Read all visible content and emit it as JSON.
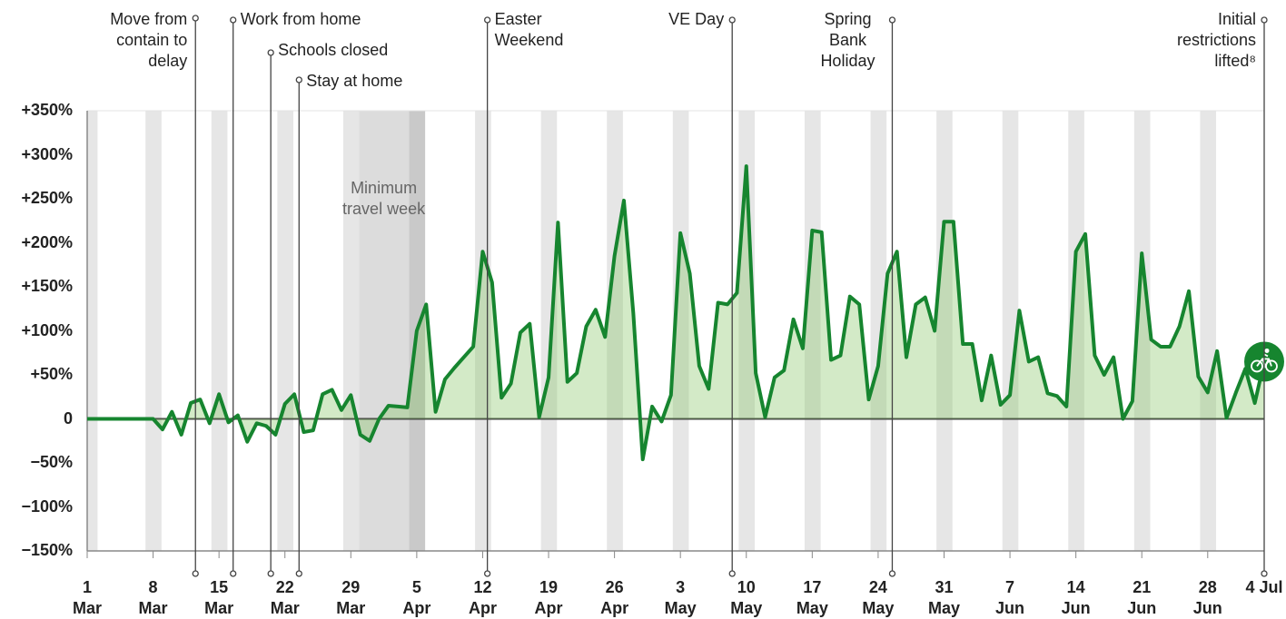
{
  "chart_data": {
    "type": "line",
    "categories": [
      "1 Mar",
      "2 Mar",
      "3 Mar",
      "4 Mar",
      "5 Mar",
      "6 Mar",
      "7 Mar",
      "8 Mar",
      "9 Mar",
      "10 Mar",
      "11 Mar",
      "12 Mar",
      "13 Mar",
      "14 Mar",
      "15 Mar",
      "16 Mar",
      "17 Mar",
      "18 Mar",
      "19 Mar",
      "20 Mar",
      "21 Mar",
      "22 Mar",
      "23 Mar",
      "24 Mar",
      "25 Mar",
      "26 Mar",
      "27 Mar",
      "28 Mar",
      "29 Mar",
      "30 Mar",
      "31 Mar",
      "1 Apr",
      "2 Apr",
      "3 Apr",
      "4 Apr",
      "5 Apr",
      "6 Apr",
      "7 Apr",
      "8 Apr",
      "9 Apr",
      "10 Apr",
      "11 Apr",
      "12 Apr",
      "13 Apr",
      "14 Apr",
      "15 Apr",
      "16 Apr",
      "17 Apr",
      "18 Apr",
      "19 Apr",
      "20 Apr",
      "21 Apr",
      "22 Apr",
      "23 Apr",
      "24 Apr",
      "25 Apr",
      "26 Apr",
      "27 Apr",
      "28 Apr",
      "29 Apr",
      "30 Apr",
      "1 May",
      "2 May",
      "3 May",
      "4 May",
      "5 May",
      "6 May",
      "7 May",
      "8 May",
      "9 May",
      "10 May",
      "11 May",
      "12 May",
      "13 May",
      "14 May",
      "15 May",
      "16 May",
      "17 May",
      "18 May",
      "19 May",
      "20 May",
      "21 May",
      "22 May",
      "23 May",
      "24 May",
      "25 May",
      "26 May",
      "27 May",
      "28 May",
      "29 May",
      "30 May",
      "31 May",
      "1 Jun",
      "2 Jun",
      "3 Jun",
      "4 Jun",
      "5 Jun",
      "6 Jun",
      "7 Jun",
      "8 Jun",
      "9 Jun",
      "10 Jun",
      "11 Jun",
      "12 Jun",
      "13 Jun",
      "14 Jun",
      "15 Jun",
      "16 Jun",
      "17 Jun",
      "18 Jun",
      "19 Jun",
      "20 Jun",
      "21 Jun",
      "22 Jun",
      "23 Jun",
      "24 Jun",
      "25 Jun",
      "26 Jun",
      "27 Jun",
      "28 Jun",
      "29 Jun",
      "30 Jun",
      "1 Jul",
      "2 Jul",
      "3 Jul",
      "4 Jul"
    ],
    "values": [
      0,
      0,
      0,
      0,
      0,
      0,
      0,
      0,
      -12,
      8,
      -18,
      18,
      22,
      -5,
      28,
      -4,
      4,
      -26,
      -5,
      -8,
      -18,
      17,
      28,
      -15,
      -13,
      28,
      33,
      10,
      27,
      -18,
      -25,
      0,
      15,
      14,
      13,
      100,
      130,
      8,
      45,
      58,
      70,
      82,
      190,
      155,
      24,
      40,
      98,
      108,
      2,
      47,
      223,
      42,
      52,
      105,
      124,
      93,
      185,
      248,
      120,
      -46,
      14,
      -3,
      27,
      211,
      165,
      60,
      34,
      132,
      130,
      143,
      287,
      52,
      2,
      47,
      55,
      113,
      80,
      214,
      212,
      67,
      72,
      139,
      130,
      22,
      60,
      165,
      190,
      70,
      130,
      138,
      100,
      224,
      224,
      85,
      85,
      21,
      72,
      16,
      27,
      123,
      65,
      70,
      29,
      26,
      14,
      190,
      210,
      72,
      50,
      70,
      0,
      20,
      188,
      90,
      82,
      82,
      105,
      145,
      48,
      30,
      77,
      1,
      30,
      57,
      18,
      65
    ],
    "color": "#16852f",
    "xticks": [
      "1 Mar",
      "8 Mar",
      "15 Mar",
      "22 Mar",
      "29 Mar",
      "5 Apr",
      "12 Apr",
      "19 Apr",
      "26 Apr",
      "3 May",
      "10 May",
      "17 May",
      "24 May",
      "31 May",
      "7 Jun",
      "14 Jun",
      "21 Jun",
      "28 Jun",
      "4 Jul"
    ],
    "ylim": [
      -150,
      350
    ],
    "yticks": [
      {
        "value": -150,
        "label": "−150%"
      },
      {
        "value": -100,
        "label": "−100%"
      },
      {
        "value": -50,
        "label": "−50%"
      },
      0,
      {
        "value": 50,
        "label": "+50%"
      },
      {
        "value": 100,
        "label": "+100%"
      },
      {
        "value": 150,
        "label": "+150%"
      },
      {
        "value": 200,
        "label": "+200%"
      },
      {
        "value": 250,
        "label": "+250%"
      },
      {
        "value": 300,
        "label": "+300%"
      },
      {
        "value": 350,
        "label": "+350%"
      }
    ],
    "annotations": [
      {
        "label": "Move from contain to delay",
        "x": "12 Mar"
      },
      {
        "label": "Work from home",
        "x": "16 Mar"
      },
      {
        "label": "Schools closed",
        "x": "20 Mar"
      },
      {
        "label": "Stay at home",
        "x": "23 Mar"
      },
      {
        "label": "Easter Weekend",
        "x": "12 Apr"
      },
      {
        "label": "VE Day",
        "x": "8 May"
      },
      {
        "label": "Spring Bank Holiday",
        "x": "25 May"
      },
      {
        "label": "Initial restrictions lifted⁸",
        "x": "4 Jul"
      }
    ],
    "shaded_period": {
      "label": "Minimum travel week",
      "start": "29 Mar",
      "end": "4 Apr"
    }
  }
}
